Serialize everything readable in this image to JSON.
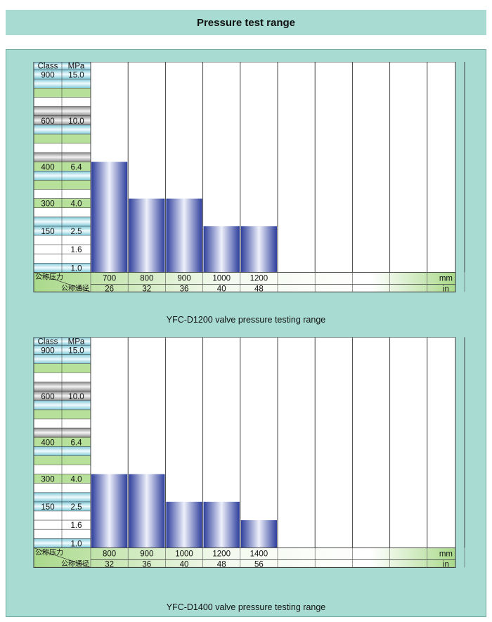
{
  "page": {
    "title": "Pressure test range"
  },
  "chart_data": [
    {
      "type": "bar",
      "caption": "YFC-D1200 valve pressure testing range",
      "header": {
        "class": "Class",
        "mpa": "MPa"
      },
      "rows": [
        {
          "class": "900",
          "mpa": "15.0"
        },
        {
          "class": "",
          "mpa": ""
        },
        {
          "class": "",
          "mpa": ""
        },
        {
          "class": "",
          "mpa": ""
        },
        {
          "class": "",
          "mpa": ""
        },
        {
          "class": "600",
          "mpa": "10.0"
        },
        {
          "class": "",
          "mpa": ""
        },
        {
          "class": "",
          "mpa": ""
        },
        {
          "class": "",
          "mpa": ""
        },
        {
          "class": "",
          "mpa": ""
        },
        {
          "class": "400",
          "mpa": "6.4"
        },
        {
          "class": "",
          "mpa": ""
        },
        {
          "class": "",
          "mpa": ""
        },
        {
          "class": "",
          "mpa": ""
        },
        {
          "class": "300",
          "mpa": "4.0"
        },
        {
          "class": "",
          "mpa": ""
        },
        {
          "class": "",
          "mpa": ""
        },
        {
          "class": "150",
          "mpa": "2.5"
        },
        {
          "class": "",
          "mpa": ""
        },
        {
          "class": "",
          "mpa": "1.6"
        },
        {
          "class": "",
          "mpa": ""
        },
        {
          "class": "",
          "mpa": "1.0"
        }
      ],
      "axis_labels": {
        "nominal_pressure": "公称压力",
        "nominal_diameter": "公称通径"
      },
      "units": {
        "mm": "mm",
        "in": "in"
      },
      "categories_mm": [
        "700",
        "800",
        "900",
        "1000",
        "1200"
      ],
      "categories_in": [
        "26",
        "32",
        "36",
        "40",
        "48"
      ],
      "values_mpa": [
        6.4,
        4.0,
        4.0,
        2.5,
        2.5
      ],
      "empty_columns": 5
    },
    {
      "type": "bar",
      "caption": "YFC-D1400 valve pressure testing range",
      "header": {
        "class": "Class",
        "mpa": "MPa"
      },
      "rows": [
        {
          "class": "900",
          "mpa": "15.0"
        },
        {
          "class": "",
          "mpa": ""
        },
        {
          "class": "",
          "mpa": ""
        },
        {
          "class": "",
          "mpa": ""
        },
        {
          "class": "",
          "mpa": ""
        },
        {
          "class": "600",
          "mpa": "10.0"
        },
        {
          "class": "",
          "mpa": ""
        },
        {
          "class": "",
          "mpa": ""
        },
        {
          "class": "",
          "mpa": ""
        },
        {
          "class": "",
          "mpa": ""
        },
        {
          "class": "400",
          "mpa": "6.4"
        },
        {
          "class": "",
          "mpa": ""
        },
        {
          "class": "",
          "mpa": ""
        },
        {
          "class": "",
          "mpa": ""
        },
        {
          "class": "300",
          "mpa": "4.0"
        },
        {
          "class": "",
          "mpa": ""
        },
        {
          "class": "",
          "mpa": ""
        },
        {
          "class": "150",
          "mpa": "2.5"
        },
        {
          "class": "",
          "mpa": ""
        },
        {
          "class": "",
          "mpa": "1.6"
        },
        {
          "class": "",
          "mpa": ""
        },
        {
          "class": "",
          "mpa": "1.0"
        }
      ],
      "axis_labels": {
        "nominal_pressure": "公称压力",
        "nominal_diameter": "公称通径"
      },
      "units": {
        "mm": "mm",
        "in": "in"
      },
      "categories_mm": [
        "800",
        "900",
        "1000",
        "1200",
        "1400"
      ],
      "categories_in": [
        "32",
        "36",
        "40",
        "48",
        "56"
      ],
      "values_mpa": [
        4.0,
        4.0,
        2.5,
        2.5,
        1.6
      ],
      "empty_columns": 5
    }
  ]
}
